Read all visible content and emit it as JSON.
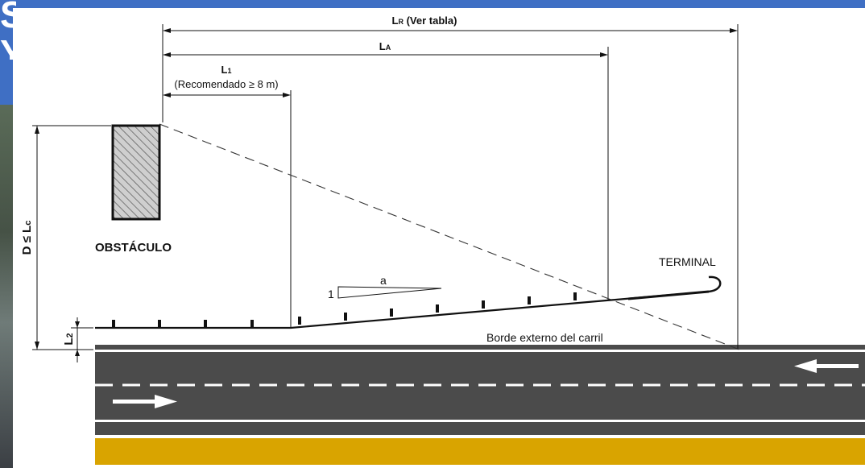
{
  "diagram": {
    "dim_lr": {
      "main": "L",
      "sub": "R",
      "suffix": " (Ver tabla)"
    },
    "dim_la": {
      "main": "L",
      "sub": "A"
    },
    "dim_l1": {
      "main": "L",
      "sub": "1"
    },
    "dim_l1_note": "(Recomendado ≥ 8 m)",
    "dim_d": {
      "main": "D ≤ L",
      "sub": "c"
    },
    "dim_l2": {
      "main": "L",
      "sub": "2"
    },
    "obstacle_label": "OBSTÁCULO",
    "terminal_label": "TERMINAL",
    "flare_rate": {
      "one": "1",
      "a": "a"
    },
    "road_edge_label": "Borde externo del carril"
  },
  "background": {
    "title_fragment": "S\nY"
  },
  "colors": {
    "slide_blue": "#3f6fc4",
    "asphalt": "#4b4b4b",
    "lane_line": "#ffffff",
    "shoulder_yellow": "#d9a400"
  },
  "icons": [
    "arrow-left-icon",
    "arrow-right-icon",
    "terminal-hook-icon",
    "hatched-obstacle-icon"
  ]
}
